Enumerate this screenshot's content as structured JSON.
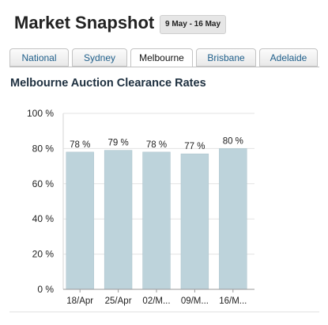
{
  "header": {
    "title": "Market Snapshot",
    "date_range": "9 May - 16 May"
  },
  "tabs": [
    {
      "label": "National",
      "active": false
    },
    {
      "label": "Sydney",
      "active": false
    },
    {
      "label": "Melbourne",
      "active": true
    },
    {
      "label": "Brisbane",
      "active": false
    },
    {
      "label": "Adelaide",
      "active": false
    }
  ],
  "colors": {
    "bar": "#bdd3db",
    "bar_stroke": "#a9c1ca",
    "tab_text": "#1f5f8b",
    "grid": "#e3e3e3"
  },
  "chart_data": {
    "type": "bar",
    "title": "Melbourne Auction Clearance Rates",
    "categories": [
      "18/Apr",
      "25/Apr",
      "02/M...",
      "09/M...",
      "16/M..."
    ],
    "values": [
      78,
      79,
      78,
      77,
      80
    ],
    "data_labels": [
      "78 %",
      "79 %",
      "78 %",
      "77 %",
      "80 %"
    ],
    "y_ticks": [
      0,
      20,
      40,
      60,
      80,
      100
    ],
    "y_tick_labels": [
      "0 %",
      "20 %",
      "40 %",
      "60 %",
      "80 %",
      "100 %"
    ],
    "ylim": [
      0,
      100
    ],
    "xlabel": "",
    "ylabel": "",
    "grid": true,
    "legend": "none"
  }
}
